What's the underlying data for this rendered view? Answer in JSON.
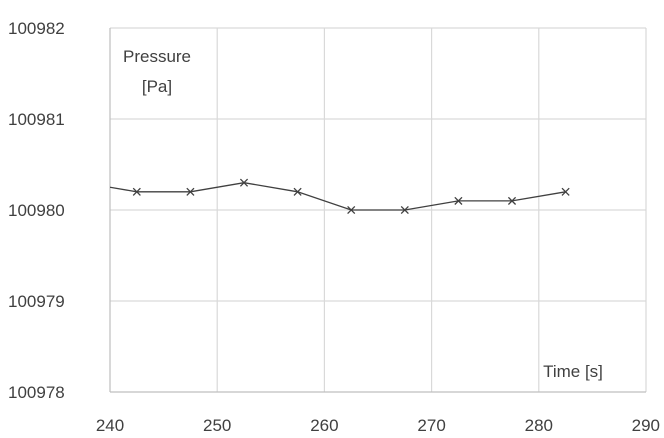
{
  "chart_data": {
    "type": "line",
    "ylabel_lines": [
      "Pressure",
      "[Pa]"
    ],
    "xlabel": "Time [s]",
    "xlim": [
      240,
      290
    ],
    "ylim": [
      100978,
      100982
    ],
    "xticks": [
      240,
      250,
      260,
      270,
      280,
      290
    ],
    "yticks": [
      100978,
      100979,
      100980,
      100981,
      100982
    ],
    "grid": true,
    "line_color": "#404040",
    "grid_color": "#d9d9d9",
    "series": [
      {
        "x": [
          237.5,
          242.5,
          247.5,
          252.5,
          257.5,
          262.5,
          267.5,
          272.5,
          277.5,
          282.5
        ],
        "y": [
          100980.3,
          100980.2,
          100980.2,
          100980.3,
          100980.2,
          100980.0,
          100980.0,
          100980.1,
          100980.1,
          100980.2
        ]
      }
    ]
  }
}
